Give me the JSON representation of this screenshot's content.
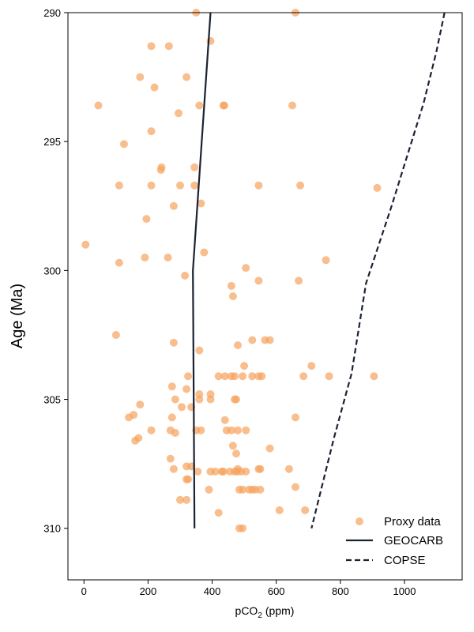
{
  "chart_data": {
    "type": "scatter",
    "xlabel": "pCO",
    "xlabel_sub": "2",
    "xlabel_unit": "(ppm)",
    "ylabel": "Age (Ma)",
    "xlim": [
      -50,
      1180
    ],
    "ylim": [
      290,
      312
    ],
    "y_inverted": true,
    "xticks": [
      0,
      200,
      400,
      600,
      800,
      1000
    ],
    "yticks": [
      290,
      295,
      300,
      305,
      310
    ],
    "grid": false,
    "legend_position": "lower-right",
    "colors": {
      "proxy": "#f7a35c",
      "geocarb": "#1a2233",
      "copse": "#1a2233"
    },
    "series": [
      {
        "name": "Proxy data",
        "kind": "scatter",
        "points": [
          [
            350,
            290.0
          ],
          [
            660,
            290.0
          ],
          [
            395,
            291.1
          ],
          [
            210,
            291.3
          ],
          [
            265,
            291.3
          ],
          [
            175,
            292.5
          ],
          [
            220,
            292.9
          ],
          [
            320,
            292.5
          ],
          [
            45,
            293.6
          ],
          [
            360,
            293.6
          ],
          [
            435,
            293.6
          ],
          [
            438,
            293.6
          ],
          [
            650,
            293.6
          ],
          [
            295,
            293.9
          ],
          [
            210,
            294.6
          ],
          [
            125,
            295.1
          ],
          [
            345,
            296.0
          ],
          [
            240,
            296.1
          ],
          [
            242,
            296.0
          ],
          [
            110,
            296.7
          ],
          [
            210,
            296.7
          ],
          [
            300,
            296.7
          ],
          [
            345,
            296.7
          ],
          [
            545,
            296.7
          ],
          [
            675,
            296.7
          ],
          [
            915,
            296.8
          ],
          [
            365,
            297.4
          ],
          [
            280,
            297.5
          ],
          [
            195,
            298.0
          ],
          [
            5,
            299.0
          ],
          [
            375,
            299.3
          ],
          [
            190,
            299.5
          ],
          [
            262,
            299.5
          ],
          [
            755,
            299.6
          ],
          [
            110,
            299.7
          ],
          [
            505,
            299.9
          ],
          [
            315,
            300.2
          ],
          [
            545,
            300.4
          ],
          [
            670,
            300.4
          ],
          [
            460,
            300.6
          ],
          [
            465,
            301.0
          ],
          [
            100,
            302.5
          ],
          [
            280,
            302.8
          ],
          [
            525,
            302.7
          ],
          [
            565,
            302.7
          ],
          [
            580,
            302.7
          ],
          [
            480,
            302.9
          ],
          [
            360,
            303.1
          ],
          [
            500,
            303.7
          ],
          [
            710,
            303.7
          ],
          [
            325,
            304.1
          ],
          [
            420,
            304.1
          ],
          [
            440,
            304.1
          ],
          [
            460,
            304.1
          ],
          [
            470,
            304.1
          ],
          [
            495,
            304.1
          ],
          [
            525,
            304.1
          ],
          [
            545,
            304.1
          ],
          [
            555,
            304.1
          ],
          [
            685,
            304.1
          ],
          [
            765,
            304.1
          ],
          [
            905,
            304.1
          ],
          [
            275,
            304.5
          ],
          [
            320,
            304.6
          ],
          [
            360,
            304.8
          ],
          [
            395,
            304.8
          ],
          [
            285,
            305.0
          ],
          [
            360,
            305.0
          ],
          [
            395,
            305.0
          ],
          [
            470,
            305.0
          ],
          [
            475,
            305.0
          ],
          [
            175,
            305.2
          ],
          [
            305,
            305.3
          ],
          [
            335,
            305.3
          ],
          [
            155,
            305.6
          ],
          [
            140,
            305.7
          ],
          [
            275,
            305.7
          ],
          [
            440,
            305.8
          ],
          [
            660,
            305.7
          ],
          [
            210,
            306.2
          ],
          [
            270,
            306.2
          ],
          [
            350,
            306.2
          ],
          [
            365,
            306.2
          ],
          [
            445,
            306.2
          ],
          [
            460,
            306.2
          ],
          [
            480,
            306.2
          ],
          [
            505,
            306.2
          ],
          [
            285,
            306.3
          ],
          [
            170,
            306.5
          ],
          [
            160,
            306.6
          ],
          [
            465,
            306.8
          ],
          [
            580,
            306.9
          ],
          [
            270,
            307.3
          ],
          [
            475,
            307.1
          ],
          [
            320,
            307.6
          ],
          [
            335,
            307.6
          ],
          [
            280,
            307.7
          ],
          [
            355,
            307.8
          ],
          [
            395,
            307.8
          ],
          [
            410,
            307.8
          ],
          [
            430,
            307.8
          ],
          [
            435,
            307.8
          ],
          [
            455,
            307.8
          ],
          [
            470,
            307.8
          ],
          [
            478,
            307.8
          ],
          [
            490,
            307.8
          ],
          [
            480,
            307.7
          ],
          [
            505,
            307.8
          ],
          [
            545,
            307.7
          ],
          [
            550,
            307.7
          ],
          [
            640,
            307.7
          ],
          [
            320,
            308.1
          ],
          [
            325,
            308.1
          ],
          [
            390,
            308.5
          ],
          [
            485,
            308.5
          ],
          [
            495,
            308.5
          ],
          [
            515,
            308.5
          ],
          [
            525,
            308.5
          ],
          [
            535,
            308.5
          ],
          [
            550,
            308.5
          ],
          [
            660,
            308.4
          ],
          [
            300,
            308.9
          ],
          [
            320,
            308.9
          ],
          [
            610,
            309.3
          ],
          [
            690,
            309.3
          ],
          [
            420,
            309.4
          ],
          [
            485,
            310.0
          ],
          [
            495,
            310.0
          ]
        ]
      },
      {
        "name": "GEOCARB",
        "kind": "line",
        "style": "solid",
        "points": [
          [
            395,
            290
          ],
          [
            340,
            300
          ],
          [
            345,
            310
          ]
        ]
      },
      {
        "name": "COPSE",
        "kind": "line",
        "style": "dashed",
        "points": [
          [
            1125,
            290
          ],
          [
            1100,
            291.5
          ],
          [
            1060,
            293.5
          ],
          [
            1010,
            295.5
          ],
          [
            960,
            297.5
          ],
          [
            920,
            299
          ],
          [
            880,
            300.5
          ],
          [
            835,
            304
          ],
          [
            780,
            306.5
          ],
          [
            710,
            310
          ]
        ]
      }
    ]
  }
}
